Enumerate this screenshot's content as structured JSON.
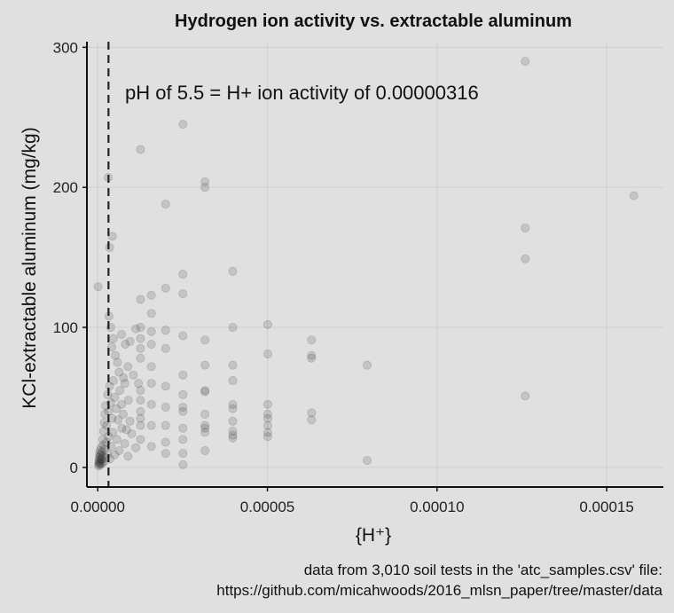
{
  "chart_data": {
    "type": "scatter",
    "title": "Hydrogen ion activity vs. extractable aluminum",
    "xlabel": "{H⁺}",
    "ylabel": "KCl-extractable aluminum (mg/kg)",
    "xlim": [
      -3.2e-06,
      0.0001667
    ],
    "ylim": [
      -14,
      304
    ],
    "x_ticks": [
      {
        "value": 0,
        "label": "0.00000"
      },
      {
        "value": 5e-05,
        "label": "0.00005"
      },
      {
        "value": 0.0001,
        "label": "0.00010"
      },
      {
        "value": 0.00015,
        "label": "0.00015"
      }
    ],
    "y_ticks": [
      {
        "value": 0,
        "label": "0"
      },
      {
        "value": 100,
        "label": "100"
      },
      {
        "value": 200,
        "label": "200"
      },
      {
        "value": 300,
        "label": "300"
      }
    ],
    "grid": true,
    "reference_line": {
      "x": 3.16e-06,
      "style": "dashed"
    },
    "annotation": "pH of 5.5 = H+ ion activity of 0.00000316",
    "caption_lines": [
      "data from 3,010 soil tests in the 'atc_samples.csv' file:",
      "https://github.com/micahwoods/2016_mlsn_paper/tree/master/data"
    ],
    "point_color": "#333333",
    "points": [
      [
        3.4e-07,
        4
      ],
      [
        4.5e-07,
        7
      ],
      [
        5.6e-07,
        10
      ],
      [
        6.3e-07,
        3
      ],
      [
        7e-07,
        12
      ],
      [
        7.9e-07,
        6
      ],
      [
        8.9e-07,
        9
      ],
      [
        1e-06,
        14
      ],
      [
        1.12e-06,
        5
      ],
      [
        1.26e-06,
        11
      ],
      [
        1.41e-06,
        8
      ],
      [
        1.58e-06,
        16
      ],
      [
        1.78e-06,
        4
      ],
      [
        2e-06,
        13
      ],
      [
        2.24e-06,
        7
      ],
      [
        2.51e-06,
        18
      ],
      [
        2.82e-06,
        10
      ],
      [
        3.16e-06,
        22
      ],
      [
        3.55e-06,
        6
      ],
      [
        3.98e-06,
        15
      ],
      [
        4.47e-06,
        25
      ],
      [
        5.01e-06,
        9
      ],
      [
        5.62e-06,
        20
      ],
      [
        6.31e-06,
        12
      ],
      [
        7.08e-06,
        28
      ],
      [
        7.94e-06,
        17
      ],
      [
        8.91e-06,
        8
      ],
      [
        1e-05,
        24
      ],
      [
        1.12e-05,
        14
      ],
      [
        1.26e-05,
        30
      ],
      [
        2.5e-07,
        2
      ],
      [
        3.2e-07,
        1
      ],
      [
        4e-07,
        5
      ],
      [
        5e-07,
        3
      ],
      [
        6e-07,
        8
      ],
      [
        8.5e-07,
        2
      ],
      [
        1.1e-06,
        6
      ],
      [
        1.3e-06,
        3
      ],
      [
        1.5e-06,
        20
      ],
      [
        1.7e-06,
        26
      ],
      [
        1.9e-06,
        32
      ],
      [
        2.1e-06,
        38
      ],
      [
        2.3e-06,
        44
      ],
      [
        2.6e-06,
        30
      ],
      [
        2.9e-06,
        52
      ],
      [
        3.2e-06,
        40
      ],
      [
        3.5e-06,
        58
      ],
      [
        3.8e-06,
        46
      ],
      [
        4.2e-06,
        35
      ],
      [
        4.6e-06,
        62
      ],
      [
        5e-06,
        50
      ],
      [
        5.5e-06,
        42
      ],
      [
        6e-06,
        34
      ],
      [
        6.5e-06,
        55
      ],
      [
        7e-06,
        45
      ],
      [
        7.5e-06,
        38
      ],
      [
        8e-06,
        60
      ],
      [
        8.5e-06,
        27
      ],
      [
        9e-06,
        48
      ],
      [
        9.5e-06,
        33
      ],
      [
        1e-07,
        129
      ],
      [
        3.1e-06,
        207
      ],
      [
        3.5e-06,
        157
      ],
      [
        4.3e-06,
        165
      ],
      [
        3.3e-06,
        108
      ],
      [
        3.8e-06,
        100
      ],
      [
        4.6e-06,
        92
      ],
      [
        5.2e-06,
        80
      ],
      [
        4.1e-06,
        86
      ],
      [
        5.8e-06,
        75
      ],
      [
        6.3e-06,
        68
      ],
      [
        7e-06,
        95
      ],
      [
        7.6e-06,
        64
      ],
      [
        8.1e-06,
        88
      ],
      [
        8.9e-06,
        72
      ],
      [
        9.5e-06,
        90
      ],
      [
        1.05e-05,
        66
      ],
      [
        1.12e-05,
        99
      ],
      [
        1.2e-05,
        60
      ],
      [
        1.26e-05,
        227
      ],
      [
        1.26e-05,
        100
      ],
      [
        1.26e-05,
        120
      ],
      [
        1.26e-05,
        92
      ],
      [
        1.26e-05,
        85
      ],
      [
        1.26e-05,
        78
      ],
      [
        1.26e-05,
        55
      ],
      [
        1.26e-05,
        48
      ],
      [
        1.26e-05,
        40
      ],
      [
        1.26e-05,
        35
      ],
      [
        1.26e-05,
        20
      ],
      [
        1.58e-05,
        123
      ],
      [
        1.58e-05,
        110
      ],
      [
        1.58e-05,
        97
      ],
      [
        1.58e-05,
        88
      ],
      [
        1.58e-05,
        72
      ],
      [
        1.58e-05,
        60
      ],
      [
        1.58e-05,
        45
      ],
      [
        1.58e-05,
        30
      ],
      [
        1.58e-05,
        15
      ],
      [
        2e-05,
        188
      ],
      [
        2e-05,
        128
      ],
      [
        2e-05,
        98
      ],
      [
        2e-05,
        85
      ],
      [
        2e-05,
        58
      ],
      [
        2e-05,
        43
      ],
      [
        2e-05,
        30
      ],
      [
        2e-05,
        18
      ],
      [
        2e-05,
        10
      ],
      [
        2.51e-05,
        245
      ],
      [
        2.51e-05,
        138
      ],
      [
        2.51e-05,
        124
      ],
      [
        2.51e-05,
        94
      ],
      [
        2.51e-05,
        66
      ],
      [
        2.51e-05,
        52
      ],
      [
        2.51e-05,
        43
      ],
      [
        2.51e-05,
        40
      ],
      [
        2.51e-05,
        28
      ],
      [
        2.51e-05,
        20
      ],
      [
        2.51e-05,
        10
      ],
      [
        2.51e-05,
        2
      ],
      [
        3.16e-05,
        204
      ],
      [
        3.16e-05,
        200
      ],
      [
        3.16e-05,
        91
      ],
      [
        3.16e-05,
        73
      ],
      [
        3.16e-05,
        55
      ],
      [
        3.16e-05,
        54
      ],
      [
        3.16e-05,
        38
      ],
      [
        3.16e-05,
        30
      ],
      [
        3.16e-05,
        28
      ],
      [
        3.16e-05,
        25
      ],
      [
        3.16e-05,
        12
      ],
      [
        3.98e-05,
        140
      ],
      [
        3.98e-05,
        100
      ],
      [
        3.98e-05,
        73
      ],
      [
        3.98e-05,
        62
      ],
      [
        3.98e-05,
        45
      ],
      [
        3.98e-05,
        42
      ],
      [
        3.98e-05,
        33
      ],
      [
        3.98e-05,
        26
      ],
      [
        3.98e-05,
        23
      ],
      [
        3.98e-05,
        21
      ],
      [
        5.01e-05,
        102
      ],
      [
        5.01e-05,
        81
      ],
      [
        5.01e-05,
        45
      ],
      [
        5.01e-05,
        38
      ],
      [
        5.01e-05,
        35
      ],
      [
        5.01e-05,
        30
      ],
      [
        5.01e-05,
        25
      ],
      [
        5.01e-05,
        22
      ],
      [
        6.3e-05,
        91
      ],
      [
        6.3e-05,
        80
      ],
      [
        6.3e-05,
        78
      ],
      [
        6.3e-05,
        39
      ],
      [
        6.3e-05,
        34
      ],
      [
        7.94e-05,
        73
      ],
      [
        7.94e-05,
        5
      ],
      [
        0.000126,
        290
      ],
      [
        0.000126,
        171
      ],
      [
        0.000126,
        149
      ],
      [
        0.000126,
        51
      ],
      [
        0.000158,
        194
      ]
    ]
  }
}
